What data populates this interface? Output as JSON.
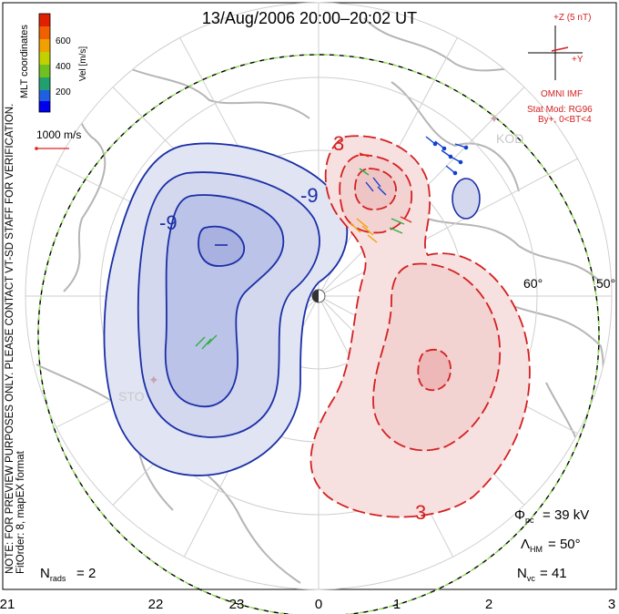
{
  "title": "13/Aug/2006 20:00–20:02 UT",
  "side_note_1": "NOTE: FOR PREVIEW PURPOSES ONLY. PLEASE CONTACT VT-SD STAFF FOR VERIFICATION.",
  "side_note_2": "FitOrder: 8, mapEX format",
  "coords_label": "MLT coordinates",
  "colorbar": {
    "label": "Vel [m/s]",
    "ticks": [
      "600",
      "400",
      "200"
    ],
    "colors": [
      "#0000ee",
      "#2060e0",
      "#20a070",
      "#70c020",
      "#c0d000",
      "#f0a000",
      "#f06000",
      "#e02000"
    ]
  },
  "scale_label": "1000 m/s",
  "imf": {
    "z_label": "+Z (5 nT)",
    "y_label": "+Y",
    "source": "OMNI IMF",
    "model": "Stat Mod: RG96",
    "condition": "By+, 0<BT<4"
  },
  "stations": [
    "KOD",
    "STO"
  ],
  "stats": {
    "phi_pc": "39 kV",
    "lambda_hm": "50°",
    "n_vc": "41",
    "n_rads": "2"
  },
  "chart_data": {
    "type": "polar-map",
    "x_ticks": [
      "21",
      "22",
      "23",
      "0",
      "1",
      "2",
      "3"
    ],
    "lat_labels": [
      "60°",
      "50°"
    ],
    "contour_labels": [
      "-9",
      "-9",
      "3",
      "3"
    ],
    "negative_cell_color": "#1a2fa6",
    "positive_cell_color": "#d42020"
  }
}
